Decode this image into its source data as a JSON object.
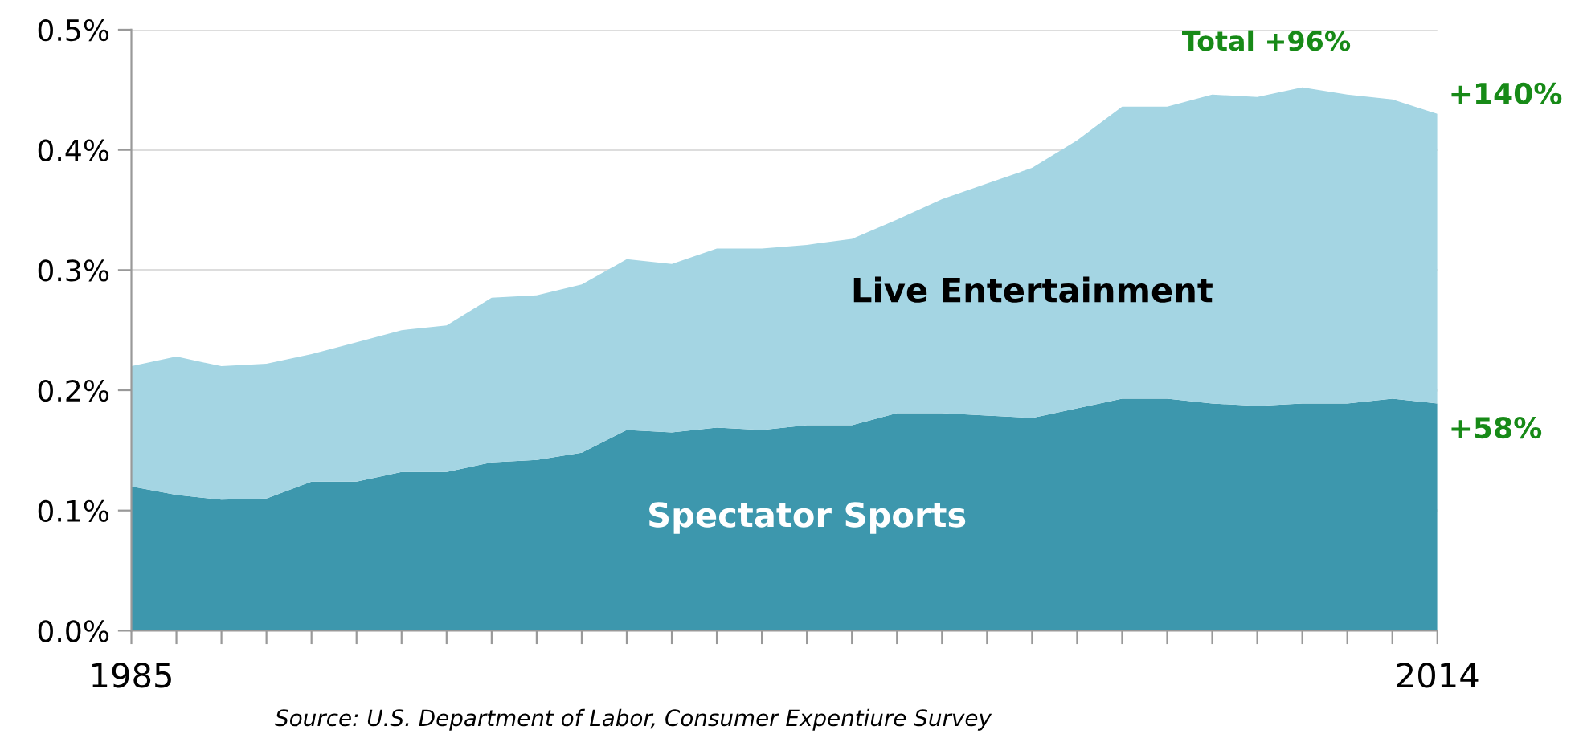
{
  "chart_data": {
    "type": "area",
    "stacked": true,
    "x": [
      1985,
      1986,
      1987,
      1988,
      1989,
      1990,
      1991,
      1992,
      1993,
      1994,
      1995,
      1996,
      1997,
      1998,
      1999,
      2000,
      2001,
      2002,
      2003,
      2004,
      2005,
      2006,
      2007,
      2008,
      2009,
      2010,
      2011,
      2012,
      2013,
      2014
    ],
    "series": [
      {
        "name": "Spectator Sports",
        "color": "#3d97ad",
        "values": [
          0.12,
          0.113,
          0.109,
          0.11,
          0.124,
          0.124,
          0.132,
          0.132,
          0.14,
          0.142,
          0.148,
          0.167,
          0.165,
          0.169,
          0.167,
          0.171,
          0.171,
          0.181,
          0.181,
          0.179,
          0.177,
          0.185,
          0.193,
          0.193,
          0.189,
          0.187,
          0.189,
          0.189,
          0.193,
          0.189
        ]
      },
      {
        "name": "Live Entertainment",
        "color": "#a4d5e3",
        "values": [
          0.1,
          0.115,
          0.111,
          0.112,
          0.106,
          0.116,
          0.118,
          0.122,
          0.137,
          0.137,
          0.14,
          0.142,
          0.14,
          0.149,
          0.151,
          0.15,
          0.155,
          0.161,
          0.178,
          0.193,
          0.208,
          0.223,
          0.243,
          0.243,
          0.257,
          0.257,
          0.263,
          0.257,
          0.249,
          0.241
        ]
      }
    ],
    "xlim": [
      1985,
      2014
    ],
    "xticks": [
      {
        "value": 1985,
        "label": "1985"
      },
      {
        "value": 1986,
        "label": null
      },
      {
        "value": 1987,
        "label": null
      },
      {
        "value": 1988,
        "label": null
      },
      {
        "value": 1989,
        "label": null
      },
      {
        "value": 1990,
        "label": null
      },
      {
        "value": 1991,
        "label": null
      },
      {
        "value": 1992,
        "label": null
      },
      {
        "value": 1993,
        "label": null
      },
      {
        "value": 1994,
        "label": null
      },
      {
        "value": 1995,
        "label": null
      },
      {
        "value": 1996,
        "label": null
      },
      {
        "value": 1997,
        "label": null
      },
      {
        "value": 1998,
        "label": null
      },
      {
        "value": 1999,
        "label": null
      },
      {
        "value": 2000,
        "label": null
      },
      {
        "value": 2001,
        "label": null
      },
      {
        "value": 2002,
        "label": null
      },
      {
        "value": 2003,
        "label": null
      },
      {
        "value": 2004,
        "label": null
      },
      {
        "value": 2005,
        "label": null
      },
      {
        "value": 2006,
        "label": null
      },
      {
        "value": 2007,
        "label": null
      },
      {
        "value": 2008,
        "label": null
      },
      {
        "value": 2009,
        "label": null
      },
      {
        "value": 2010,
        "label": null
      },
      {
        "value": 2011,
        "label": null
      },
      {
        "value": 2012,
        "label": null
      },
      {
        "value": 2013,
        "label": null
      },
      {
        "value": 2014,
        "label": "2014"
      }
    ],
    "ylim": [
      0,
      0.5
    ],
    "yticks": [
      {
        "value": 0,
        "label": "0.0%"
      },
      {
        "value": 0.1,
        "label": "0.1%"
      },
      {
        "value": 0.2,
        "label": "0.2%"
      },
      {
        "value": 0.3,
        "label": "0.3%"
      },
      {
        "value": 0.4,
        "label": "0.4%"
      },
      {
        "value": 0.5,
        "label": "0.5%"
      }
    ],
    "grid": "y",
    "legend": false,
    "annotations": [
      "Total +96%",
      "+140%",
      "+58%",
      "Source: U.S. Department of Labor, Consumer Expentiure Survey"
    ]
  }
}
